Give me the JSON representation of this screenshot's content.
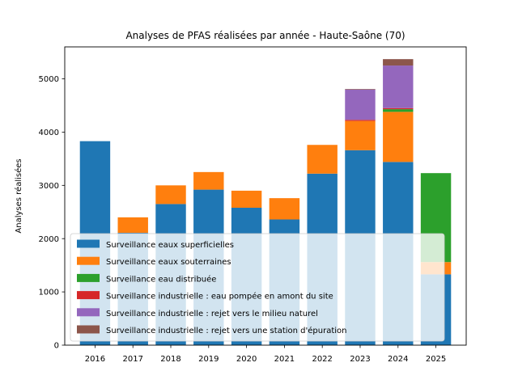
{
  "chart_data": {
    "type": "bar",
    "stacked": true,
    "title": "Analyses de PFAS réalisées par année - Haute-Saône (70)",
    "xlabel": "",
    "ylabel": "Analyses réalisées",
    "ylim": [
      0,
      5600
    ],
    "yticks": [
      0,
      1000,
      2000,
      3000,
      4000,
      5000
    ],
    "categories": [
      "2016",
      "2017",
      "2018",
      "2019",
      "2020",
      "2021",
      "2022",
      "2023",
      "2024",
      "2025"
    ],
    "series": [
      {
        "name": "Surveillance eaux superficielles",
        "color": "#1f77b4",
        "values": [
          3830,
          2110,
          2650,
          2920,
          2580,
          2360,
          3220,
          3660,
          3440,
          1330
        ]
      },
      {
        "name": "Surveillance eaux souterraines",
        "color": "#ff7f0e",
        "values": [
          0,
          290,
          350,
          330,
          320,
          400,
          540,
          550,
          940,
          230
        ]
      },
      {
        "name": "Surveillance eau distribuée",
        "color": "#2ca02c",
        "values": [
          0,
          0,
          0,
          0,
          0,
          0,
          0,
          0,
          50,
          1670
        ]
      },
      {
        "name": "Surveillance industrielle : eau pompée en amont du site",
        "color": "#d62728",
        "values": [
          0,
          0,
          0,
          0,
          0,
          0,
          0,
          20,
          20,
          0
        ]
      },
      {
        "name": "Surveillance industrielle : rejet vers le milieu naturel",
        "color": "#9467bd",
        "values": [
          0,
          0,
          0,
          0,
          0,
          0,
          0,
          570,
          800,
          0
        ]
      },
      {
        "name": "Surveillance industrielle : rejet vers une station d'épuration",
        "color": "#8c564b",
        "values": [
          0,
          0,
          0,
          0,
          0,
          0,
          0,
          10,
          120,
          0
        ]
      }
    ],
    "legend_position": "lower-left",
    "grid": false
  }
}
